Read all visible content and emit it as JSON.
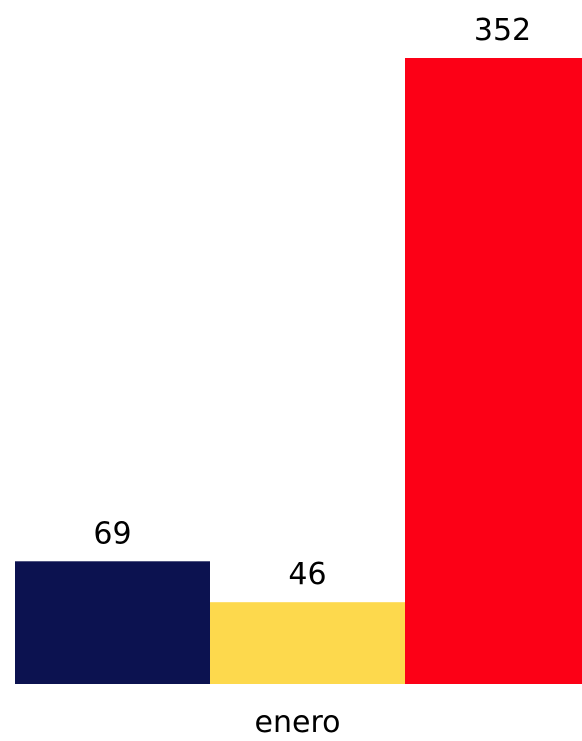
{
  "chart_data": {
    "type": "bar",
    "categories": [
      "enero"
    ],
    "series": [
      {
        "color": "#0c1250",
        "values": [
          69
        ]
      },
      {
        "color": "#fdd94d",
        "values": [
          46
        ]
      },
      {
        "color": "#fc0016",
        "values": [
          352
        ]
      }
    ]
  }
}
